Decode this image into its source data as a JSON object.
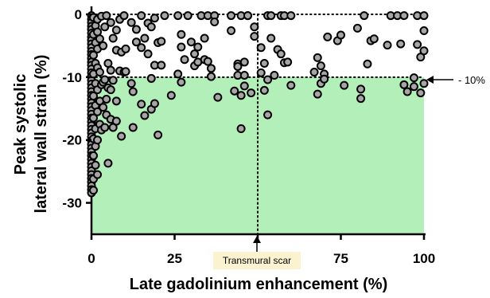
{
  "chart_data": {
    "type": "scatter",
    "xlabel": "Late gadolinium enhancement (%)",
    "ylabel": [
      "Peak systolic",
      "lateral wall strain (%)"
    ],
    "xlim": [
      0,
      100
    ],
    "ylim": [
      -35,
      0
    ],
    "x_ticks": [
      "0",
      "25",
      "50",
      "75",
      "100"
    ],
    "y_ticks": [
      "0",
      "-10",
      "-20",
      "-30"
    ],
    "grid": false,
    "shaded_region": {
      "x": [
        0,
        100
      ],
      "y": [
        -35,
        -10
      ],
      "color": "#b3f0b9"
    },
    "reference_lines": {
      "y": -10,
      "x": 50
    },
    "annotations": {
      "threshold": "- 10%",
      "transmural": "Transmural scar"
    },
    "colors": {
      "marker_fill": "#a6a6a6",
      "marker_edge": "#000000",
      "box_fill": "#fbf3cf"
    },
    "points": [
      [
        0,
        -0.2
      ],
      [
        0,
        -0.8
      ],
      [
        0,
        -1.3
      ],
      [
        0,
        -1.9
      ],
      [
        0,
        -2.4
      ],
      [
        0,
        -3
      ],
      [
        0,
        -3.6
      ],
      [
        0,
        -4.1
      ],
      [
        0,
        -4.7
      ],
      [
        0,
        -5.3
      ],
      [
        0,
        -5.9
      ],
      [
        0,
        -6.4
      ],
      [
        0,
        -7
      ],
      [
        0,
        -7.6
      ],
      [
        0,
        -8.1
      ],
      [
        0,
        -8.7
      ],
      [
        0,
        -9.3
      ],
      [
        0,
        -9.9
      ],
      [
        0,
        -10.5
      ],
      [
        0,
        -11.1
      ],
      [
        0,
        -11.7
      ],
      [
        0,
        -12.3
      ],
      [
        0,
        -12.9
      ],
      [
        0,
        -13.5
      ],
      [
        0,
        -14.1
      ],
      [
        0,
        -14.7
      ],
      [
        0,
        -15.3
      ],
      [
        0,
        -15.9
      ],
      [
        0,
        -16.5
      ],
      [
        0,
        -17.1
      ],
      [
        0,
        -17.7
      ],
      [
        0,
        -18.3
      ],
      [
        0,
        -18.9
      ],
      [
        0,
        -19.5
      ],
      [
        0,
        -20.1
      ],
      [
        0,
        -20.7
      ],
      [
        0,
        -21.3
      ],
      [
        0,
        -21.9
      ],
      [
        0,
        -22.5
      ],
      [
        0,
        -23.1
      ],
      [
        0,
        -23.7
      ],
      [
        0,
        -24.3
      ],
      [
        0,
        -24.9
      ],
      [
        0,
        -25.5
      ],
      [
        0,
        -26.1
      ],
      [
        0,
        -26.7
      ],
      [
        0,
        -27.3
      ],
      [
        0,
        -27.9
      ],
      [
        0,
        -28.4
      ],
      [
        0.6,
        -0.5
      ],
      [
        0.6,
        -3.2
      ],
      [
        0.6,
        -6.5
      ],
      [
        0.6,
        -9.5
      ],
      [
        0.6,
        -13
      ],
      [
        0.6,
        -16.5
      ],
      [
        0.6,
        -19.8
      ],
      [
        0.6,
        -22.5
      ],
      [
        0.6,
        -26.2
      ],
      [
        0.6,
        -28
      ],
      [
        1.2,
        -1.8
      ],
      [
        1.2,
        -4.5
      ],
      [
        1.2,
        -7.8
      ],
      [
        1.2,
        -11
      ],
      [
        1.2,
        -14.5
      ],
      [
        1.2,
        -18.2
      ],
      [
        1.2,
        -21
      ],
      [
        1.2,
        -24
      ],
      [
        1.8,
        -0.8
      ],
      [
        1.8,
        -2.8
      ],
      [
        1.8,
        -5.5
      ],
      [
        1.8,
        -8.5
      ],
      [
        1.8,
        -12
      ],
      [
        1.8,
        -15.5
      ],
      [
        1.8,
        -20
      ],
      [
        1.8,
        -25.5
      ],
      [
        2.5,
        -3.9
      ],
      [
        2.5,
        -9.2
      ],
      [
        2.5,
        -13.8
      ],
      [
        2.5,
        -17.5
      ],
      [
        3,
        -0.3
      ],
      [
        3,
        -11.2
      ],
      [
        3,
        -18.4
      ],
      [
        3.5,
        -5
      ],
      [
        3.5,
        -10.8
      ],
      [
        3.5,
        -14.8
      ],
      [
        4,
        -2
      ],
      [
        4,
        -10.4
      ],
      [
        4,
        -18
      ],
      [
        4.5,
        -0.2
      ],
      [
        4.5,
        -13.5
      ],
      [
        4.5,
        -16
      ],
      [
        5,
        -7.8
      ],
      [
        5,
        -11.7
      ],
      [
        5,
        -23.7
      ],
      [
        5.8,
        -1.3
      ],
      [
        5.8,
        -8.9
      ],
      [
        5.8,
        -12
      ],
      [
        5.8,
        -16.7
      ],
      [
        6.5,
        -3.8
      ],
      [
        6.5,
        -10.5
      ],
      [
        6.5,
        -18
      ],
      [
        7.5,
        -2.5
      ],
      [
        7.5,
        -5.7
      ],
      [
        7.5,
        -13.8
      ],
      [
        7.5,
        -17
      ],
      [
        8.5,
        -0.8
      ],
      [
        8.5,
        -9
      ],
      [
        9,
        -6
      ],
      [
        9,
        -19.4
      ],
      [
        9.8,
        -0.2
      ],
      [
        9.8,
        -9.2
      ],
      [
        10.3,
        -9.1
      ],
      [
        10.3,
        -5.5
      ],
      [
        12,
        -1.3
      ],
      [
        12,
        -11
      ],
      [
        12.5,
        -12.3
      ],
      [
        12.5,
        -18
      ],
      [
        13.5,
        -2.4
      ],
      [
        13.5,
        -4.4
      ],
      [
        15,
        -0.2
      ],
      [
        15,
        -5.3
      ],
      [
        15,
        -14.3
      ],
      [
        16,
        -3.8
      ],
      [
        16,
        -16.1
      ],
      [
        17,
        -1.4
      ],
      [
        17,
        -6.3
      ],
      [
        18,
        -2
      ],
      [
        18,
        -10.2
      ],
      [
        18,
        -15.1
      ],
      [
        19,
        -0.6
      ],
      [
        19,
        -8.1
      ],
      [
        19,
        -14.2
      ],
      [
        20,
        -4.5
      ],
      [
        20,
        -19.2
      ],
      [
        21,
        -4.3
      ],
      [
        21,
        -8.1
      ],
      [
        22,
        -0.2
      ],
      [
        24,
        -12.9
      ],
      [
        26,
        -0.2
      ],
      [
        26,
        -9.5
      ],
      [
        27,
        -3.2
      ],
      [
        27,
        -5.2
      ],
      [
        27,
        -10.8
      ],
      [
        28,
        -7.2
      ],
      [
        29,
        -0.2
      ],
      [
        30,
        -4.4
      ],
      [
        31,
        -6.3
      ],
      [
        31,
        -8.2
      ],
      [
        32,
        -5.2
      ],
      [
        32,
        -7.6
      ],
      [
        33,
        -0.2
      ],
      [
        34,
        -3.8
      ],
      [
        34,
        -7.2
      ],
      [
        35,
        -0.2
      ],
      [
        35,
        -7.5
      ],
      [
        36,
        -8.6
      ],
      [
        36,
        -9.9
      ],
      [
        37,
        -0.2
      ],
      [
        37,
        -1.2
      ],
      [
        38,
        -13.2
      ],
      [
        42,
        -0.2
      ],
      [
        42,
        -2.6
      ],
      [
        43,
        -12.2
      ],
      [
        44,
        -7.9
      ],
      [
        44,
        -8.3
      ],
      [
        44,
        -9.7
      ],
      [
        45,
        -0.2
      ],
      [
        45,
        -12.9
      ],
      [
        45,
        -18.2
      ],
      [
        46,
        -7.6
      ],
      [
        46,
        -9.7
      ],
      [
        46,
        -11.4
      ],
      [
        47,
        -0.2
      ],
      [
        47,
        -0.2
      ],
      [
        48,
        -12.5
      ],
      [
        49,
        -2
      ],
      [
        49,
        -3.5
      ],
      [
        51,
        -9.3
      ],
      [
        51,
        -5.3
      ],
      [
        52,
        -7.8
      ],
      [
        52,
        -12.1
      ],
      [
        53,
        -0.2
      ],
      [
        53,
        -10.4
      ],
      [
        53,
        -16
      ],
      [
        54,
        -3.8
      ],
      [
        54,
        -0.2
      ],
      [
        55,
        -9.7
      ],
      [
        56,
        -5.6
      ],
      [
        57,
        -0.2
      ],
      [
        57,
        -6.3
      ],
      [
        58,
        -0.2
      ],
      [
        58,
        -7.7
      ],
      [
        59,
        -7.6
      ],
      [
        60,
        -0.2
      ],
      [
        60,
        -11.3
      ],
      [
        67,
        -9.2
      ],
      [
        68,
        -6.9
      ],
      [
        68,
        -12.7
      ],
      [
        69,
        -8.2
      ],
      [
        69,
        -11
      ],
      [
        70,
        -9.5
      ],
      [
        70,
        -10.3
      ],
      [
        71,
        -3.6
      ],
      [
        74,
        -4.2
      ],
      [
        75,
        -3.3
      ],
      [
        76,
        -11.3
      ],
      [
        80,
        -2.2
      ],
      [
        81,
        -11.9
      ],
      [
        81,
        -13.4
      ],
      [
        82,
        -0.2
      ],
      [
        83,
        -7.9
      ],
      [
        84,
        -4.2
      ],
      [
        85,
        -3.9
      ],
      [
        89,
        -4.9
      ],
      [
        90,
        -0.2
      ],
      [
        92,
        -0.2
      ],
      [
        93,
        -4.7
      ],
      [
        94,
        -0.2
      ],
      [
        94,
        -11.2
      ],
      [
        95,
        -12.3
      ],
      [
        97,
        -10.1
      ],
      [
        97,
        -11.5
      ],
      [
        98,
        -0.2
      ],
      [
        98,
        -4.8
      ],
      [
        99,
        -6.8
      ],
      [
        99,
        -12.5
      ],
      [
        100,
        -0.2
      ],
      [
        100,
        -2.6
      ],
      [
        100,
        -5.8
      ],
      [
        100,
        -11
      ]
    ]
  }
}
